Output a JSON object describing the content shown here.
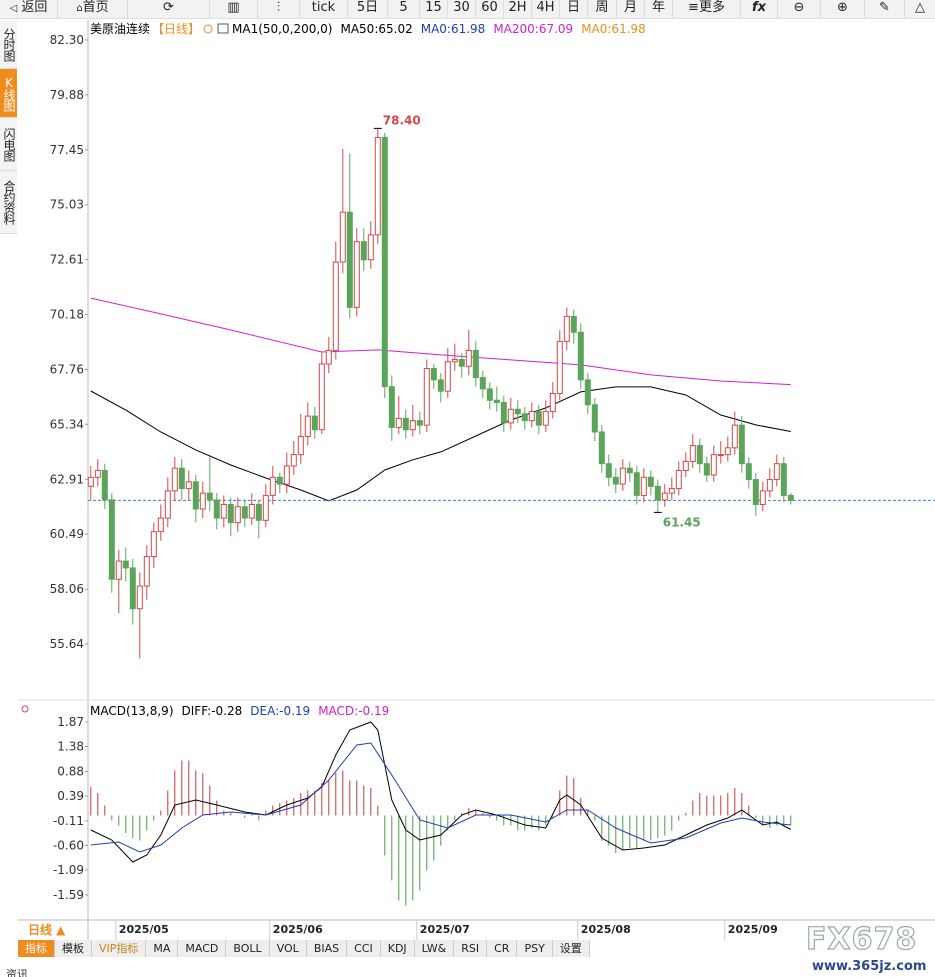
{
  "toolbar": [
    "返回",
    "首页",
    "tick",
    "5日",
    "5",
    "15",
    "30",
    "60",
    "2H",
    "4H",
    "日",
    "周",
    "月",
    "年",
    "更多"
  ],
  "sidebar": [
    "分时图",
    "K线图",
    "闪电图",
    "合约资料"
  ],
  "chart_data": [
    {
      "type": "candlestick",
      "title": "美原油连续",
      "period": "【日线】",
      "legend": [
        {
          "text": "MA1(50,0,200,0)",
          "color": "#000000"
        },
        {
          "text": "MA50:65.02",
          "color": "#000000"
        },
        {
          "text": "MA0:61.98",
          "color": "#1f3fae"
        },
        {
          "text": "MA200:67.09",
          "color": "#d21fd2"
        },
        {
          "text": "MA0:61.98",
          "color": "#e8901c"
        }
      ],
      "up_color": "#d2484a",
      "down_color": "#5aa55a",
      "xlim": [
        -0.4,
        120.6
      ],
      "ylim": [
        53.39,
        82.83
      ],
      "yticks": [
        {
          "value": 82.3,
          "label": "82.30"
        },
        79.88,
        77.45,
        75.03,
        72.61,
        70.18,
        67.76,
        65.34,
        62.91,
        60.49,
        58.06,
        55.64
      ],
      "xticks": [
        {
          "value": 4,
          "label": "2025/05"
        },
        {
          "value": 26,
          "label": "2025/06"
        },
        {
          "value": 47,
          "label": "2025/07"
        },
        {
          "value": 70,
          "label": "2025/08"
        },
        {
          "value": 91,
          "label": "2025/09"
        }
      ],
      "ohlc": [
        [
          62.6,
          63.5,
          62.0,
          63.0
        ],
        [
          63.0,
          63.8,
          62.6,
          63.3
        ],
        [
          63.3,
          63.6,
          61.6,
          62.0
        ],
        [
          62.0,
          62.3,
          57.9,
          58.5
        ],
        [
          58.5,
          59.8,
          57.0,
          59.3
        ],
        [
          59.3,
          59.9,
          58.4,
          59.0
        ],
        [
          59.0,
          59.4,
          56.5,
          57.2
        ],
        [
          57.2,
          58.8,
          55.0,
          58.2
        ],
        [
          58.2,
          60.0,
          57.6,
          59.5
        ],
        [
          59.5,
          61.0,
          59.0,
          60.6
        ],
        [
          60.6,
          61.8,
          60.2,
          61.2
        ],
        [
          61.2,
          63.0,
          60.8,
          62.4
        ],
        [
          62.4,
          63.9,
          62.0,
          63.4
        ],
        [
          63.4,
          63.8,
          62.0,
          62.5
        ],
        [
          62.5,
          63.3,
          62.0,
          62.8
        ],
        [
          62.8,
          63.1,
          61.0,
          61.6
        ],
        [
          61.6,
          62.8,
          61.2,
          62.3
        ],
        [
          62.3,
          63.9,
          61.5,
          62.0
        ],
        [
          62.0,
          62.3,
          60.7,
          61.2
        ],
        [
          61.2,
          62.2,
          60.8,
          61.8
        ],
        [
          61.8,
          62.1,
          60.4,
          61.0
        ],
        [
          61.0,
          62.1,
          60.6,
          61.7
        ],
        [
          61.7,
          62.0,
          60.8,
          61.2
        ],
        [
          61.2,
          62.3,
          60.9,
          61.8
        ],
        [
          61.8,
          62.0,
          60.3,
          61.1
        ],
        [
          61.1,
          62.7,
          60.8,
          62.2
        ],
        [
          62.2,
          63.5,
          61.8,
          63.0
        ],
        [
          63.0,
          63.2,
          62.3,
          62.7
        ],
        [
          62.7,
          64.1,
          62.3,
          63.5
        ],
        [
          63.5,
          64.6,
          63.1,
          64.0
        ],
        [
          64.0,
          65.8,
          63.6,
          64.8
        ],
        [
          64.8,
          66.3,
          64.4,
          65.7
        ],
        [
          65.7,
          66.1,
          64.7,
          65.1
        ],
        [
          65.1,
          68.5,
          64.9,
          68.0
        ],
        [
          68.0,
          69.2,
          67.6,
          68.6
        ],
        [
          68.6,
          73.4,
          68.2,
          72.5
        ],
        [
          72.5,
          77.5,
          72.0,
          74.7
        ],
        [
          74.7,
          77.3,
          70.0,
          70.5
        ],
        [
          70.5,
          74.0,
          70.1,
          73.4
        ],
        [
          73.4,
          74.0,
          72.1,
          72.6
        ],
        [
          72.6,
          74.3,
          72.2,
          73.7
        ],
        [
          73.7,
          78.4,
          73.3,
          78.0
        ],
        [
          78.0,
          78.2,
          66.5,
          67.0
        ],
        [
          67.0,
          67.5,
          64.6,
          65.2
        ],
        [
          65.2,
          66.6,
          64.9,
          65.6
        ],
        [
          65.6,
          66.0,
          64.7,
          65.1
        ],
        [
          65.1,
          66.2,
          64.8,
          65.5
        ],
        [
          65.5,
          65.9,
          64.9,
          65.3
        ],
        [
          65.3,
          68.2,
          65.0,
          67.8
        ],
        [
          67.8,
          68.0,
          66.9,
          67.3
        ],
        [
          67.3,
          67.6,
          66.3,
          66.8
        ],
        [
          66.8,
          68.7,
          66.5,
          68.1
        ],
        [
          68.1,
          68.9,
          67.7,
          68.2
        ],
        [
          68.2,
          68.5,
          67.4,
          67.9
        ],
        [
          67.9,
          69.5,
          67.5,
          68.6
        ],
        [
          68.6,
          69.0,
          67.0,
          67.4
        ],
        [
          67.4,
          67.7,
          66.5,
          66.9
        ],
        [
          66.9,
          67.2,
          66.0,
          66.4
        ],
        [
          66.4,
          67.0,
          65.9,
          66.3
        ],
        [
          66.3,
          66.6,
          65.0,
          65.4
        ],
        [
          65.4,
          66.5,
          65.1,
          66.0
        ],
        [
          66.0,
          66.4,
          65.4,
          65.8
        ],
        [
          65.8,
          66.1,
          65.1,
          65.5
        ],
        [
          65.5,
          66.3,
          65.2,
          65.9
        ],
        [
          65.9,
          66.2,
          64.9,
          65.3
        ],
        [
          65.3,
          66.4,
          65.0,
          65.9
        ],
        [
          65.9,
          67.2,
          65.6,
          66.7
        ],
        [
          66.7,
          69.5,
          66.4,
          69.0
        ],
        [
          69.0,
          70.5,
          68.6,
          70.1
        ],
        [
          70.1,
          70.4,
          68.9,
          69.4
        ],
        [
          69.4,
          69.8,
          66.9,
          67.3
        ],
        [
          67.3,
          67.6,
          65.8,
          66.2
        ],
        [
          66.2,
          66.5,
          64.6,
          65.0
        ],
        [
          65.0,
          65.3,
          63.2,
          63.6
        ],
        [
          63.6,
          64.0,
          62.6,
          63.0
        ],
        [
          63.0,
          63.4,
          62.3,
          62.7
        ],
        [
          62.7,
          63.8,
          62.4,
          63.4
        ],
        [
          63.4,
          63.7,
          62.8,
          63.2
        ],
        [
          63.2,
          63.5,
          61.8,
          62.2
        ],
        [
          62.2,
          63.4,
          61.9,
          63.0
        ],
        [
          63.0,
          63.3,
          62.2,
          62.6
        ],
        [
          62.6,
          62.9,
          61.45,
          62.0
        ],
        [
          62.0,
          62.7,
          61.7,
          62.3
        ],
        [
          62.3,
          63.0,
          62.0,
          62.5
        ],
        [
          62.5,
          63.7,
          62.2,
          63.3
        ],
        [
          63.3,
          64.1,
          63.0,
          63.7
        ],
        [
          63.7,
          64.9,
          63.4,
          64.4
        ],
        [
          64.4,
          64.7,
          63.2,
          63.6
        ],
        [
          63.6,
          63.9,
          62.8,
          63.1
        ],
        [
          63.1,
          64.4,
          62.8,
          64.0
        ],
        [
          64.0,
          64.6,
          63.6,
          64.0
        ],
        [
          64.0,
          64.8,
          63.7,
          64.3
        ],
        [
          64.3,
          65.9,
          64.0,
          65.3
        ],
        [
          65.3,
          65.7,
          63.2,
          63.6
        ],
        [
          63.6,
          63.9,
          62.5,
          62.9
        ],
        [
          62.9,
          63.2,
          61.3,
          61.8
        ],
        [
          61.8,
          62.8,
          61.5,
          62.4
        ],
        [
          62.4,
          63.4,
          62.1,
          62.9
        ],
        [
          62.9,
          64.0,
          62.6,
          63.6
        ],
        [
          63.6,
          63.9,
          61.9,
          62.2
        ],
        [
          62.2,
          62.3,
          61.8,
          61.98
        ]
      ],
      "lines": [
        {
          "color": "#000000",
          "x": [
            0,
            5,
            10,
            15,
            20,
            25,
            30,
            34,
            38,
            42,
            46,
            50,
            55,
            60,
            65,
            70,
            75,
            80,
            85,
            90,
            95,
            100
          ],
          "values": [
            66.81,
            65.97,
            65.0,
            64.21,
            63.54,
            62.97,
            62.44,
            61.96,
            62.44,
            63.32,
            63.77,
            64.12,
            64.82,
            65.53,
            66.06,
            66.77,
            66.99,
            66.99,
            66.63,
            65.75,
            65.31,
            65.02
          ]
        },
        {
          "color": "#d21fd2",
          "x": [
            0,
            10,
            20,
            33,
            41,
            50,
            60,
            70,
            80,
            90,
            100
          ],
          "values": [
            70.91,
            70.21,
            69.5,
            68.53,
            68.62,
            68.4,
            68.18,
            67.96,
            67.52,
            67.25,
            67.09
          ]
        }
      ],
      "last_price": 61.98,
      "last_price_color": "#3a7bd5",
      "annotations": [
        {
          "text": "78.40",
          "x": 41,
          "value": 78.4,
          "color": "#d2484a"
        },
        {
          "text": "61.45",
          "x": 81,
          "value": 61.45,
          "color": "#5aa55a"
        }
      ]
    },
    {
      "type": "macd",
      "legend": [
        {
          "text": "MACD(13,8,9)",
          "color": "#000000"
        },
        {
          "text": "DIFF:-0.28",
          "color": "#000000"
        },
        {
          "text": "DEA:-0.19",
          "color": "#1f3fae"
        },
        {
          "text": "MACD:-0.19",
          "color": "#d21fd2"
        }
      ],
      "xlim": [
        -0.4,
        120.6
      ],
      "ylim": [
        -2.05,
        2.01
      ],
      "yticks": [
        1.87,
        1.38,
        0.88,
        0.39,
        -0.11,
        {
          "value": -0.6,
          "label": "-0.60"
        },
        -1.09,
        -1.59
      ],
      "histogram": [
        0.57,
        0.45,
        0.2,
        -0.1,
        -0.2,
        -0.35,
        -0.45,
        -0.5,
        -0.3,
        -0.1,
        0.1,
        0.5,
        0.9,
        1.1,
        1.1,
        0.9,
        0.85,
        0.6,
        0.3,
        0.1,
        0.05,
        0.0,
        -0.05,
        0.02,
        -0.1,
        0.1,
        0.2,
        0.25,
        0.3,
        0.35,
        0.45,
        0.5,
        0.5,
        0.65,
        0.7,
        0.85,
        0.9,
        0.7,
        0.7,
        0.6,
        0.55,
        0.2,
        -0.8,
        -1.3,
        -1.7,
        -1.8,
        -1.7,
        -1.5,
        -1.1,
        -0.9,
        -0.6,
        -0.3,
        -0.1,
        0.05,
        0.15,
        0.1,
        0.05,
        -0.05,
        -0.1,
        -0.2,
        -0.2,
        -0.3,
        -0.3,
        -0.25,
        -0.3,
        -0.2,
        -0.05,
        0.5,
        0.8,
        0.75,
        0.35,
        0.1,
        -0.1,
        -0.5,
        -0.6,
        -0.75,
        -0.7,
        -0.65,
        -0.65,
        -0.5,
        -0.5,
        -0.45,
        -0.4,
        -0.3,
        -0.1,
        0.05,
        0.3,
        0.45,
        0.4,
        0.4,
        0.4,
        0.45,
        0.55,
        0.45,
        0.2,
        -0.05,
        -0.2,
        -0.25,
        -0.2,
        -0.2,
        -0.19
      ],
      "up_color": "#c0393b",
      "down_color": "#4c9a4c",
      "lines": [
        {
          "color": "#000000",
          "x": [
            0,
            3,
            6,
            8,
            10,
            12,
            15,
            18,
            22,
            25,
            28,
            31,
            33,
            35,
            37,
            40,
            41,
            43,
            45,
            47,
            50,
            53,
            55,
            58,
            62,
            65,
            67,
            68,
            70,
            73,
            76,
            79,
            82,
            85,
            88,
            91,
            93,
            96,
            98,
            100
          ],
          "values": [
            -0.29,
            -0.49,
            -0.93,
            -0.79,
            -0.39,
            0.21,
            0.31,
            0.21,
            0.07,
            0.01,
            0.21,
            0.35,
            0.57,
            1.21,
            1.71,
            1.87,
            1.71,
            0.31,
            -0.29,
            -0.49,
            -0.39,
            0.01,
            0.11,
            0.01,
            -0.19,
            -0.25,
            0.31,
            0.41,
            0.21,
            -0.45,
            -0.69,
            -0.65,
            -0.59,
            -0.39,
            -0.19,
            -0.05,
            0.11,
            -0.19,
            -0.13,
            -0.28
          ]
        },
        {
          "color": "#1f3fae",
          "x": [
            0,
            4,
            7,
            10,
            13,
            16,
            20,
            25,
            30,
            34,
            38,
            40,
            43,
            47,
            51,
            55,
            60,
            65,
            68,
            71,
            75,
            80,
            85,
            90,
            93,
            96,
            100
          ],
          "values": [
            -0.59,
            -0.53,
            -0.73,
            -0.59,
            -0.25,
            0.01,
            0.07,
            0.01,
            0.21,
            0.71,
            1.41,
            1.45,
            0.81,
            -0.09,
            -0.25,
            0.01,
            0.01,
            -0.13,
            0.11,
            0.11,
            -0.25,
            -0.55,
            -0.45,
            -0.15,
            -0.05,
            -0.13,
            -0.19
          ]
        }
      ]
    }
  ],
  "period_label": "日线 ▲",
  "tabs": [
    "指标",
    "模板",
    "VIP指标",
    "MA",
    "MACD",
    "BOLL",
    "VOL",
    "BIAS",
    "CCI",
    "KDJ",
    "LW&",
    "RSI",
    "CR",
    "PSY",
    "设置"
  ],
  "watermark": [
    "FX678",
    "www.365jz.com"
  ],
  "footer": "资讯"
}
